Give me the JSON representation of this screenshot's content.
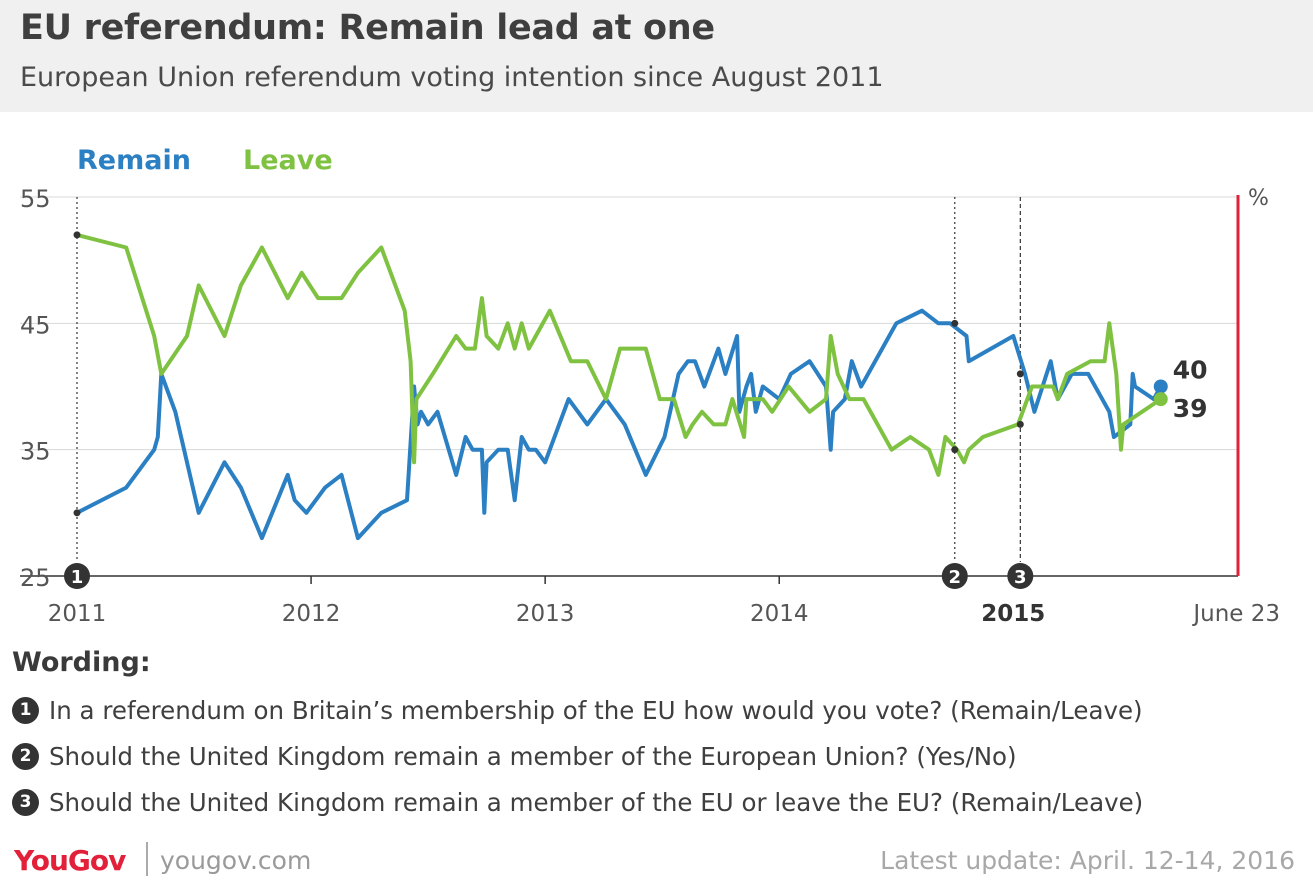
{
  "title": "EU referendum: Remain lead at one",
  "subtitle": "European Union referendum voting intention since August 2011",
  "wording_title": "Wording:",
  "questions": [
    {
      "num": "1",
      "text": "In a referendum on Britain’s membership of the EU how would you vote? (Remain/Leave)"
    },
    {
      "num": "2",
      "text": "Should the United Kingdom remain a member of the European Union? (Yes/No)"
    },
    {
      "num": "3",
      "text": "Should the United Kingdom remain a member of the EU or leave the EU? (Remain/Leave)"
    }
  ],
  "footer": {
    "logo": "YouGov",
    "site": "yougov.com",
    "update": "Latest update: April. 12-14, 2016"
  },
  "colors": {
    "remain": "#2b7fc3",
    "leave": "#7fc241",
    "referendum_line": "#e3203a",
    "grid": "#d8d8d8"
  },
  "chart_data": {
    "type": "line",
    "unit": "%",
    "ylim": [
      25,
      55
    ],
    "yticks": [
      25,
      35,
      45,
      55
    ],
    "xlim": [
      2011.0,
      2015.96
    ],
    "xticks": [
      {
        "value": 2011.0,
        "label": "2011"
      },
      {
        "value": 2012.0,
        "label": "2012"
      },
      {
        "value": 2013.0,
        "label": "2013"
      },
      {
        "value": 2014.0,
        "label": "2014"
      },
      {
        "value": 2015.0,
        "label": "2015",
        "bold": true
      },
      {
        "value": 2015.96,
        "label": "June 23"
      }
    ],
    "grid": true,
    "legend": "top-left",
    "markers": [
      {
        "label": "1",
        "x": 2011.0
      },
      {
        "label": "2",
        "x": 2014.75
      },
      {
        "label": "3",
        "x": 2015.03
      }
    ],
    "referendum_date": 2015.96,
    "series": [
      {
        "name": "Remain",
        "color": "#2b7fc3",
        "end_label": "40",
        "points": [
          [
            2011.0,
            30
          ],
          [
            2011.21,
            32
          ],
          [
            2011.33,
            35
          ],
          [
            2011.345,
            36
          ],
          [
            2011.36,
            41
          ],
          [
            2011.42,
            38
          ],
          [
            2011.47,
            34
          ],
          [
            2011.52,
            30
          ],
          [
            2011.63,
            34
          ],
          [
            2011.7,
            32
          ],
          [
            2011.79,
            28
          ],
          [
            2011.9,
            33
          ],
          [
            2011.93,
            31
          ],
          [
            2011.98,
            30
          ],
          [
            2012.06,
            32
          ],
          [
            2012.13,
            33
          ],
          [
            2012.2,
            28
          ],
          [
            2012.3,
            30
          ],
          [
            2012.41,
            31
          ],
          [
            2012.44,
            40
          ],
          [
            2012.455,
            37
          ],
          [
            2012.47,
            38
          ],
          [
            2012.5,
            37
          ],
          [
            2012.54,
            38
          ],
          [
            2012.62,
            33
          ],
          [
            2012.66,
            36
          ],
          [
            2012.69,
            35
          ],
          [
            2012.73,
            35
          ],
          [
            2012.74,
            30
          ],
          [
            2012.75,
            34
          ],
          [
            2012.8,
            35
          ],
          [
            2012.84,
            35
          ],
          [
            2012.87,
            31
          ],
          [
            2012.9,
            36
          ],
          [
            2012.93,
            35
          ],
          [
            2012.96,
            35
          ],
          [
            2013.0,
            34
          ],
          [
            2013.1,
            39
          ],
          [
            2013.18,
            37
          ],
          [
            2013.26,
            39
          ],
          [
            2013.34,
            37
          ],
          [
            2013.43,
            33
          ],
          [
            2013.51,
            36
          ],
          [
            2013.57,
            41
          ],
          [
            2013.61,
            42
          ],
          [
            2013.64,
            42
          ],
          [
            2013.68,
            40
          ],
          [
            2013.74,
            43
          ],
          [
            2013.77,
            41
          ],
          [
            2013.82,
            44
          ],
          [
            2013.83,
            38
          ],
          [
            2013.86,
            40
          ],
          [
            2013.88,
            41
          ],
          [
            2013.9,
            38
          ],
          [
            2013.93,
            40
          ],
          [
            2014.0,
            39
          ],
          [
            2014.05,
            41
          ],
          [
            2014.13,
            42
          ],
          [
            2014.2,
            40
          ],
          [
            2014.22,
            35
          ],
          [
            2014.23,
            38
          ],
          [
            2014.28,
            39
          ],
          [
            2014.31,
            42
          ],
          [
            2014.35,
            40
          ],
          [
            2014.5,
            45
          ],
          [
            2014.61,
            46
          ],
          [
            2014.68,
            45
          ],
          [
            2014.73,
            45
          ],
          [
            2014.8,
            44
          ],
          [
            2014.81,
            42
          ],
          [
            2015.0,
            44
          ],
          [
            2015.05,
            41
          ],
          [
            2015.09,
            38
          ],
          [
            2015.16,
            42
          ],
          [
            2015.19,
            39
          ],
          [
            2015.25,
            41
          ],
          [
            2015.32,
            41
          ],
          [
            2015.41,
            38
          ],
          [
            2015.43,
            36
          ],
          [
            2015.5,
            37
          ],
          [
            2015.51,
            41
          ],
          [
            2015.52,
            40
          ],
          [
            2015.6,
            39
          ],
          [
            2015.63,
            40
          ]
        ]
      },
      {
        "name": "Leave",
        "color": "#7fc241",
        "end_label": "39",
        "points": [
          [
            2011.0,
            52
          ],
          [
            2011.21,
            51
          ],
          [
            2011.33,
            44
          ],
          [
            2011.36,
            41
          ],
          [
            2011.47,
            44
          ],
          [
            2011.52,
            48
          ],
          [
            2011.63,
            44
          ],
          [
            2011.7,
            48
          ],
          [
            2011.79,
            51
          ],
          [
            2011.9,
            47
          ],
          [
            2011.96,
            49
          ],
          [
            2012.03,
            47
          ],
          [
            2012.13,
            47
          ],
          [
            2012.2,
            49
          ],
          [
            2012.3,
            51
          ],
          [
            2012.4,
            46
          ],
          [
            2012.425,
            42
          ],
          [
            2012.44,
            34
          ],
          [
            2012.45,
            39
          ],
          [
            2012.52,
            41
          ],
          [
            2012.62,
            44
          ],
          [
            2012.66,
            43
          ],
          [
            2012.7,
            43
          ],
          [
            2012.73,
            47
          ],
          [
            2012.75,
            44
          ],
          [
            2012.8,
            43
          ],
          [
            2012.84,
            45
          ],
          [
            2012.87,
            43
          ],
          [
            2012.9,
            45
          ],
          [
            2012.93,
            43
          ],
          [
            2013.02,
            46
          ],
          [
            2013.11,
            42
          ],
          [
            2013.18,
            42
          ],
          [
            2013.26,
            39
          ],
          [
            2013.32,
            43
          ],
          [
            2013.43,
            43
          ],
          [
            2013.49,
            39
          ],
          [
            2013.55,
            39
          ],
          [
            2013.6,
            36
          ],
          [
            2013.63,
            37
          ],
          [
            2013.67,
            38
          ],
          [
            2013.72,
            37
          ],
          [
            2013.77,
            37
          ],
          [
            2013.8,
            39
          ],
          [
            2013.85,
            36
          ],
          [
            2013.86,
            39
          ],
          [
            2013.9,
            39
          ],
          [
            2013.93,
            39
          ],
          [
            2013.97,
            38
          ],
          [
            2014.04,
            40
          ],
          [
            2014.13,
            38
          ],
          [
            2014.2,
            39
          ],
          [
            2014.22,
            44
          ],
          [
            2014.25,
            41
          ],
          [
            2014.3,
            39
          ],
          [
            2014.36,
            39
          ],
          [
            2014.48,
            35
          ],
          [
            2014.56,
            36
          ],
          [
            2014.64,
            35
          ],
          [
            2014.68,
            33
          ],
          [
            2014.71,
            36
          ],
          [
            2014.76,
            35
          ],
          [
            2014.79,
            34
          ],
          [
            2014.81,
            35
          ],
          [
            2014.87,
            36
          ],
          [
            2015.02,
            37
          ],
          [
            2015.08,
            40
          ],
          [
            2015.17,
            40
          ],
          [
            2015.19,
            39
          ],
          [
            2015.23,
            41
          ],
          [
            2015.33,
            42
          ],
          [
            2015.39,
            42
          ],
          [
            2015.41,
            45
          ],
          [
            2015.44,
            41
          ],
          [
            2015.46,
            35
          ],
          [
            2015.47,
            37
          ],
          [
            2015.55,
            38
          ],
          [
            2015.63,
            39
          ]
        ]
      }
    ]
  }
}
